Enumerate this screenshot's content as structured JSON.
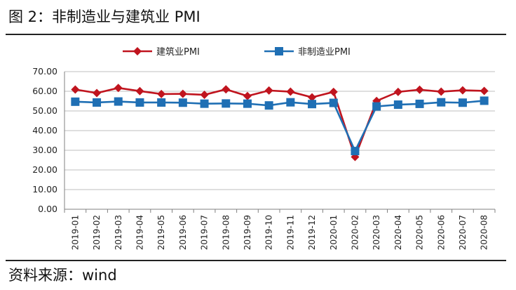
{
  "figure": {
    "title": "图 2：非制造业与建筑业 PMI",
    "source": "资料来源：wind"
  },
  "colors": {
    "construction": "#c0141e",
    "non_manufacturing": "#1f6fb4",
    "grid": "#bfbfbf",
    "axis": "#808080"
  },
  "chart_data": {
    "type": "line",
    "categories": [
      "2019-01",
      "2019-02",
      "2019-03",
      "2019-04",
      "2019-05",
      "2019-06",
      "2019-07",
      "2019-08",
      "2019-09",
      "2019-10",
      "2019-11",
      "2019-12",
      "2020-01",
      "2020-02",
      "2020-03",
      "2020-04",
      "2020-05",
      "2020-06",
      "2020-07",
      "2020-08"
    ],
    "y_ticks": [
      "0.00",
      "10.00",
      "20.00",
      "30.00",
      "40.00",
      "50.00",
      "60.00",
      "70.00"
    ],
    "ylim": [
      0,
      70
    ],
    "grid": true,
    "legend_position": "top-center",
    "series": [
      {
        "name": "建筑业PMI",
        "marker": "diamond",
        "values": [
          60.9,
          59.1,
          61.7,
          60.1,
          58.6,
          58.7,
          58.2,
          61.0,
          57.6,
          60.4,
          59.8,
          56.9,
          59.7,
          26.6,
          55.1,
          59.7,
          60.8,
          59.8,
          60.5,
          60.2
        ]
      },
      {
        "name": "非制造业PMI",
        "marker": "square",
        "values": [
          54.7,
          54.3,
          54.8,
          54.3,
          54.3,
          54.2,
          53.7,
          53.8,
          53.7,
          52.8,
          54.4,
          53.5,
          54.1,
          29.6,
          52.3,
          53.2,
          53.6,
          54.4,
          54.2,
          55.2
        ]
      }
    ]
  }
}
